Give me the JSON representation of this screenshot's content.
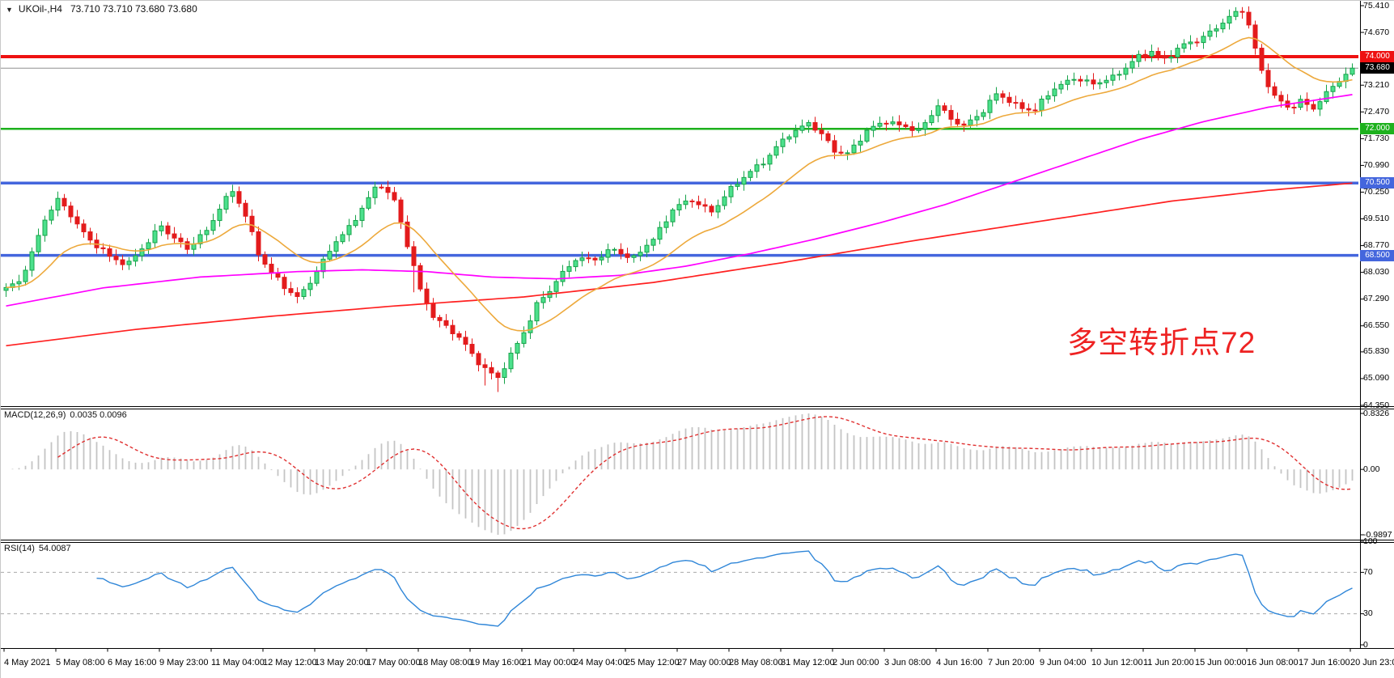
{
  "window": {
    "dropdown_icon": "▼",
    "symbol_period": "UKOil-,H4",
    "quotes": "73.710 73.710 73.680 73.680"
  },
  "annotation": {
    "text": "多空转折点72",
    "color": "#ee2222"
  },
  "main_pane": {
    "price_axis_labels": [
      "75.410",
      "74.670",
      "73.930",
      "73.210",
      "72.470",
      "71.730",
      "70.990",
      "70.250",
      "69.510",
      "68.770",
      "68.030",
      "67.290",
      "66.550",
      "65.830",
      "65.090",
      "64.350"
    ],
    "horizontal_lines": [
      {
        "price": 74.0,
        "label": "74.000",
        "color": "#ee1111",
        "width": 4
      },
      {
        "price": 72.0,
        "label": "72.000",
        "color": "#1db11d",
        "width": 2.5
      },
      {
        "price": 70.5,
        "label": "70.500",
        "color": "#4466dd",
        "width": 3.5
      },
      {
        "price": 68.5,
        "label": "68.500",
        "color": "#4466dd",
        "width": 3.5
      }
    ],
    "current_price": {
      "value": 73.68,
      "label": "73.680",
      "badge_bg": "#000000",
      "line_color": "#909090"
    }
  },
  "macd_pane": {
    "label": "MACD(12,26,9)",
    "values": "0.0035 0.0096",
    "axis_labels": [
      "0.8326",
      "0.00",
      "-0.9897"
    ]
  },
  "rsi_pane": {
    "label": "RSI(14)",
    "value": "54.0087",
    "axis_labels": [
      "100",
      "70",
      "30",
      "0"
    ],
    "level_lines": [
      70,
      30
    ]
  },
  "time_axis": {
    "labels": [
      "4 May 2021",
      "5 May 08:00",
      "6 May 16:00",
      "9 May 23:00",
      "11 May 04:00",
      "12 May 12:00",
      "13 May 20:00",
      "17 May 00:00",
      "18 May 08:00",
      "19 May 16:00",
      "21 May 00:00",
      "24 May 04:00",
      "25 May 12:00",
      "27 May 00:00",
      "28 May 08:00",
      "31 May 12:00",
      "2 Jun 00:00",
      "3 Jun 08:00",
      "4 Jun 16:00",
      "7 Jun 20:00",
      "9 Jun 04:00",
      "10 Jun 12:00",
      "11 Jun 20:00",
      "15 Jun 00:00",
      "16 Jun 08:00",
      "17 Jun 16:00",
      "20 Jun 23:00"
    ]
  },
  "colors": {
    "bull_fill": "#4ce08c",
    "bull_stroke": "#17a34a",
    "bear_fill": "#e31b1c",
    "bear_stroke": "#e31b1c",
    "ma_fast": "#eda93c",
    "ma_mid": "#ff00ff",
    "ma_slow": "#ff2020",
    "macd_histogram": "#c4c4c4",
    "macd_signal": "#e03030",
    "rsi_line": "#2f86d8",
    "level_dash": "#aaaaaa",
    "pane_border": "#000000"
  },
  "chart_data": {
    "type": "candlestick+indicators",
    "symbol": "UKOil-",
    "timeframe": "H4",
    "bars": 209,
    "price_range": [
      64.35,
      75.41
    ],
    "price_axis_ticks": [
      75.41,
      74.67,
      73.93,
      73.21,
      72.47,
      71.73,
      70.99,
      70.25,
      69.51,
      68.77,
      68.03,
      67.29,
      66.55,
      65.83,
      65.09,
      64.35
    ],
    "close_anchors_by_bar": [
      [
        0,
        67.55
      ],
      [
        2,
        67.75
      ],
      [
        4,
        68.6
      ],
      [
        6,
        69.5
      ],
      [
        8,
        70.0
      ],
      [
        10,
        69.65
      ],
      [
        13,
        68.9
      ],
      [
        16,
        68.45
      ],
      [
        19,
        68.3
      ],
      [
        22,
        68.85
      ],
      [
        24,
        69.35
      ],
      [
        26,
        69.0
      ],
      [
        28,
        68.65
      ],
      [
        31,
        69.2
      ],
      [
        33,
        69.85
      ],
      [
        35,
        70.25
      ],
      [
        37,
        69.6
      ],
      [
        39,
        68.6
      ],
      [
        41,
        68.0
      ],
      [
        43,
        67.6
      ],
      [
        45,
        67.35
      ],
      [
        47,
        67.8
      ],
      [
        49,
        68.3
      ],
      [
        51,
        68.9
      ],
      [
        53,
        69.3
      ],
      [
        55,
        69.8
      ],
      [
        57,
        70.3
      ],
      [
        58,
        70.45
      ],
      [
        60,
        70.05
      ],
      [
        62,
        68.8
      ],
      [
        64,
        67.5
      ],
      [
        66,
        66.85
      ],
      [
        68,
        66.55
      ],
      [
        70,
        66.2
      ],
      [
        72,
        65.75
      ],
      [
        74,
        65.4
      ],
      [
        76,
        65.1
      ],
      [
        78,
        65.7
      ],
      [
        80,
        66.4
      ],
      [
        82,
        67.15
      ],
      [
        84,
        67.5
      ],
      [
        86,
        68.0
      ],
      [
        88,
        68.45
      ],
      [
        91,
        68.35
      ],
      [
        94,
        68.7
      ],
      [
        97,
        68.4
      ],
      [
        100,
        68.95
      ],
      [
        103,
        69.8
      ],
      [
        106,
        70.0
      ],
      [
        109,
        69.75
      ],
      [
        112,
        70.3
      ],
      [
        115,
        70.85
      ],
      [
        118,
        71.25
      ],
      [
        121,
        71.85
      ],
      [
        124,
        72.2
      ],
      [
        126,
        71.8
      ],
      [
        128,
        71.4
      ],
      [
        130,
        71.35
      ],
      [
        133,
        71.9
      ],
      [
        136,
        72.25
      ],
      [
        139,
        72.05
      ],
      [
        141,
        71.9
      ],
      [
        144,
        72.7
      ],
      [
        146,
        72.25
      ],
      [
        148,
        72.05
      ],
      [
        151,
        72.55
      ],
      [
        153,
        72.95
      ],
      [
        156,
        72.65
      ],
      [
        159,
        72.55
      ],
      [
        162,
        73.1
      ],
      [
        165,
        73.45
      ],
      [
        168,
        73.2
      ],
      [
        171,
        73.45
      ],
      [
        174,
        73.85
      ],
      [
        177,
        74.15
      ],
      [
        179,
        73.95
      ],
      [
        181,
        74.2
      ],
      [
        184,
        74.45
      ],
      [
        186,
        74.7
      ],
      [
        189,
        75.05
      ],
      [
        191,
        75.3
      ],
      [
        192,
        74.9
      ],
      [
        194,
        73.6
      ],
      [
        196,
        72.85
      ],
      [
        198,
        72.6
      ],
      [
        200,
        72.8
      ],
      [
        202,
        72.55
      ],
      [
        204,
        72.95
      ],
      [
        206,
        73.4
      ],
      [
        208,
        73.68
      ]
    ],
    "extra_lower_wicks": {
      "63": 0.55,
      "74": 0.4,
      "76": 0.3
    },
    "ma_fast": {
      "type": "ema",
      "period": 18
    },
    "ma_mid_anchors_by_bar": [
      [
        0,
        67.1
      ],
      [
        15,
        67.6
      ],
      [
        30,
        67.9
      ],
      [
        45,
        68.05
      ],
      [
        55,
        68.1
      ],
      [
        65,
        68.05
      ],
      [
        75,
        67.9
      ],
      [
        85,
        67.85
      ],
      [
        95,
        67.95
      ],
      [
        105,
        68.2
      ],
      [
        115,
        68.55
      ],
      [
        125,
        68.95
      ],
      [
        135,
        69.4
      ],
      [
        145,
        69.9
      ],
      [
        155,
        70.5
      ],
      [
        165,
        71.1
      ],
      [
        175,
        71.7
      ],
      [
        185,
        72.2
      ],
      [
        195,
        72.6
      ],
      [
        208,
        72.95
      ]
    ],
    "ma_slow_anchors_by_bar": [
      [
        0,
        66.0
      ],
      [
        20,
        66.45
      ],
      [
        40,
        66.8
      ],
      [
        60,
        67.1
      ],
      [
        80,
        67.35
      ],
      [
        100,
        67.75
      ],
      [
        120,
        68.3
      ],
      [
        140,
        68.9
      ],
      [
        160,
        69.45
      ],
      [
        180,
        70.0
      ],
      [
        195,
        70.3
      ],
      [
        208,
        70.5
      ]
    ],
    "horizontal_levels": [
      74.0,
      72.0,
      70.5,
      68.5
    ],
    "last_price": 73.68,
    "macd": {
      "fast": 12,
      "slow": 26,
      "signal_period": 9,
      "last_main": 0.0035,
      "last_signal": 0.0096,
      "shown_range": [
        -0.9897,
        0.8326
      ]
    },
    "rsi": {
      "period": 14,
      "last": 54.0087,
      "range": [
        0,
        100
      ],
      "levels": [
        70,
        30
      ]
    }
  }
}
